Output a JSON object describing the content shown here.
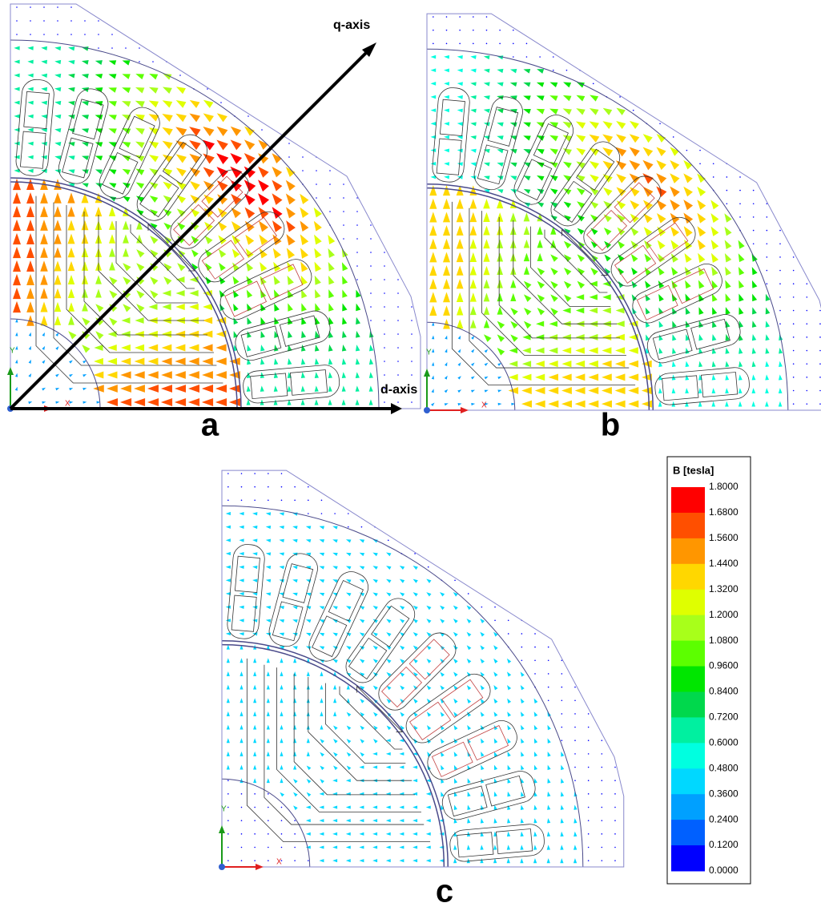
{
  "panels": [
    {
      "label": "a",
      "axis_labels": [
        "X",
        "Y"
      ],
      "annotations": [
        "q-axis",
        "d-axis"
      ]
    },
    {
      "label": "b",
      "axis_labels": [
        "X",
        "Y"
      ]
    },
    {
      "label": "c",
      "axis_labels": [
        "X",
        "Y"
      ]
    }
  ],
  "legend": {
    "title": "B [tesla]",
    "ticks": [
      "1.8000",
      "1.6800",
      "1.5600",
      "1.4400",
      "1.3200",
      "1.2000",
      "1.0800",
      "0.9600",
      "0.8400",
      "0.7200",
      "0.6000",
      "0.4800",
      "0.3600",
      "0.2400",
      "0.1200",
      "0.0000"
    ],
    "colors": [
      "#ff0000",
      "#ff4f00",
      "#ff9600",
      "#ffd700",
      "#dfff00",
      "#a8ff1a",
      "#5cff00",
      "#00e600",
      "#00d84c",
      "#00f0a0",
      "#00ffe0",
      "#00d8ff",
      "#00a0ff",
      "#0060ff",
      "#0000ff"
    ]
  }
}
